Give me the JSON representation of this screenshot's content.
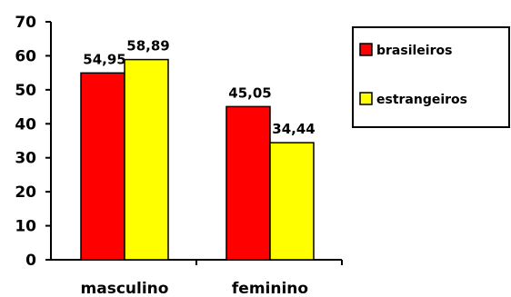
{
  "chart_data": {
    "type": "bar",
    "categories": [
      "masculino",
      "feminino"
    ],
    "series": [
      {
        "name": "brasileiros",
        "values": [
          54.95,
          45.05
        ],
        "labels": [
          "54,95",
          "45,05"
        ],
        "color": "#ff0000"
      },
      {
        "name": "estrangeiros",
        "values": [
          58.89,
          34.44
        ],
        "labels": [
          "58,89",
          "34,44"
        ],
        "color": "#ffff00"
      }
    ],
    "ylim": [
      0,
      70
    ],
    "yticks": [
      0,
      10,
      20,
      30,
      40,
      50,
      60,
      70
    ],
    "legend": "right",
    "grid": false
  }
}
